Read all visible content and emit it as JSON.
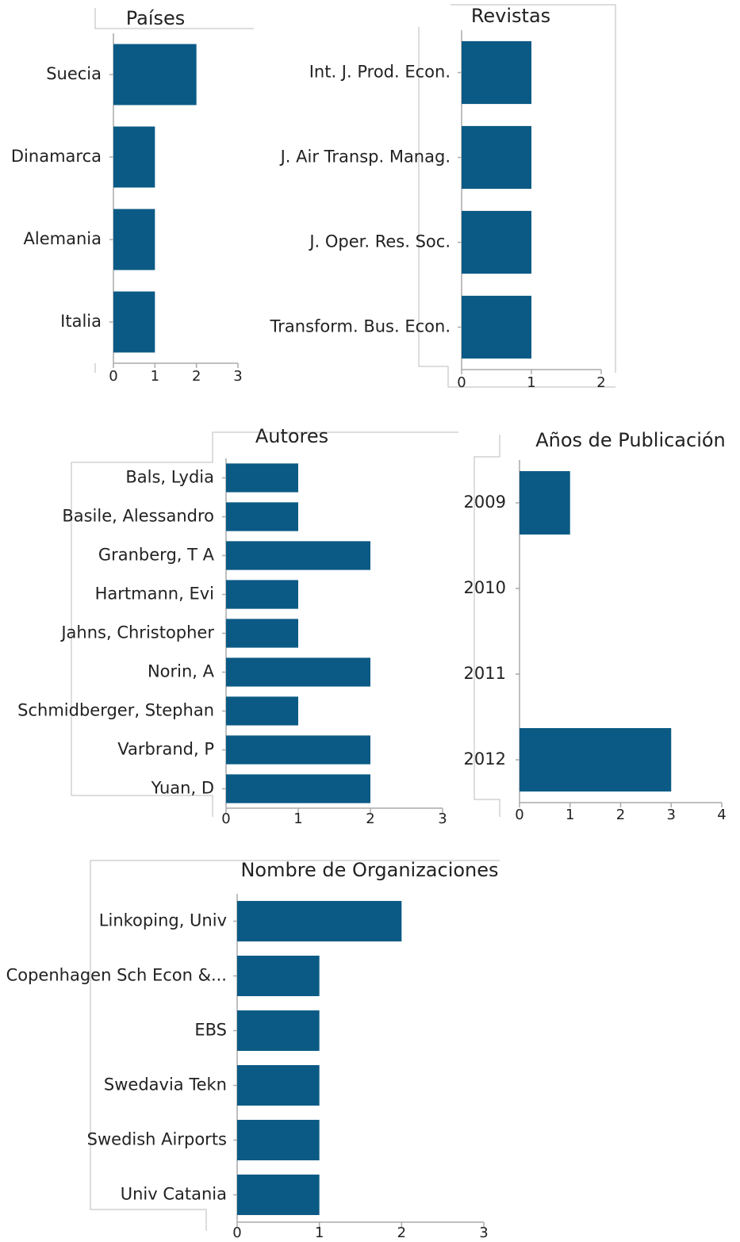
{
  "chart_data": [
    {
      "type": "barh",
      "title": "Países",
      "categories": [
        "Suecia",
        "Dinamarca",
        "Alemania",
        "Italia"
      ],
      "values": [
        2,
        1,
        1,
        1
      ],
      "color": "#0b5a85",
      "xlim": [
        0,
        3
      ],
      "xticks": [
        0,
        1,
        2,
        3
      ]
    },
    {
      "type": "barh",
      "title": "Revistas",
      "categories": [
        "Int. J. Prod. Econ.",
        "J. Air Transp. Manag.",
        "J. Oper. Res. Soc.",
        "Transform. Bus. Econ."
      ],
      "values": [
        1,
        1,
        1,
        1
      ],
      "color": "#0b5a85",
      "xlim": [
        0,
        2
      ],
      "xticks": [
        0,
        1,
        2
      ]
    },
    {
      "type": "barh",
      "title": "Autores",
      "categories": [
        "Bals, Lydia",
        "Basile, Alessandro",
        "Granberg, T A",
        "Hartmann, Evi",
        "Jahns, Christopher",
        "Norin, A",
        "Schmidberger, Stephan",
        "Varbrand, P",
        "Yuan, D"
      ],
      "values": [
        1,
        1,
        2,
        1,
        1,
        2,
        1,
        2,
        2
      ],
      "color": "#0b5a85",
      "xlim": [
        0,
        3
      ],
      "xticks": [
        0,
        1,
        2,
        3
      ]
    },
    {
      "type": "barh",
      "title": "Años de Publicación",
      "categories": [
        "2009",
        "2010",
        "2011",
        "2012"
      ],
      "values": [
        1,
        0,
        0,
        3
      ],
      "color": "#0b5a85",
      "xlim": [
        0,
        4
      ],
      "xticks": [
        0,
        1,
        2,
        3,
        4
      ]
    },
    {
      "type": "barh",
      "title": "Nombre de Organizaciones",
      "categories": [
        "Linkoping, Univ",
        "Copenhagen Sch Econ &...",
        "EBS",
        "Swedavia Tekn",
        "Swedish Airports",
        "Univ Catania"
      ],
      "values": [
        2,
        1,
        1,
        1,
        1,
        1
      ],
      "color": "#0b5a85",
      "xlim": [
        0,
        3
      ],
      "xticks": [
        0,
        1,
        2,
        3
      ]
    }
  ]
}
